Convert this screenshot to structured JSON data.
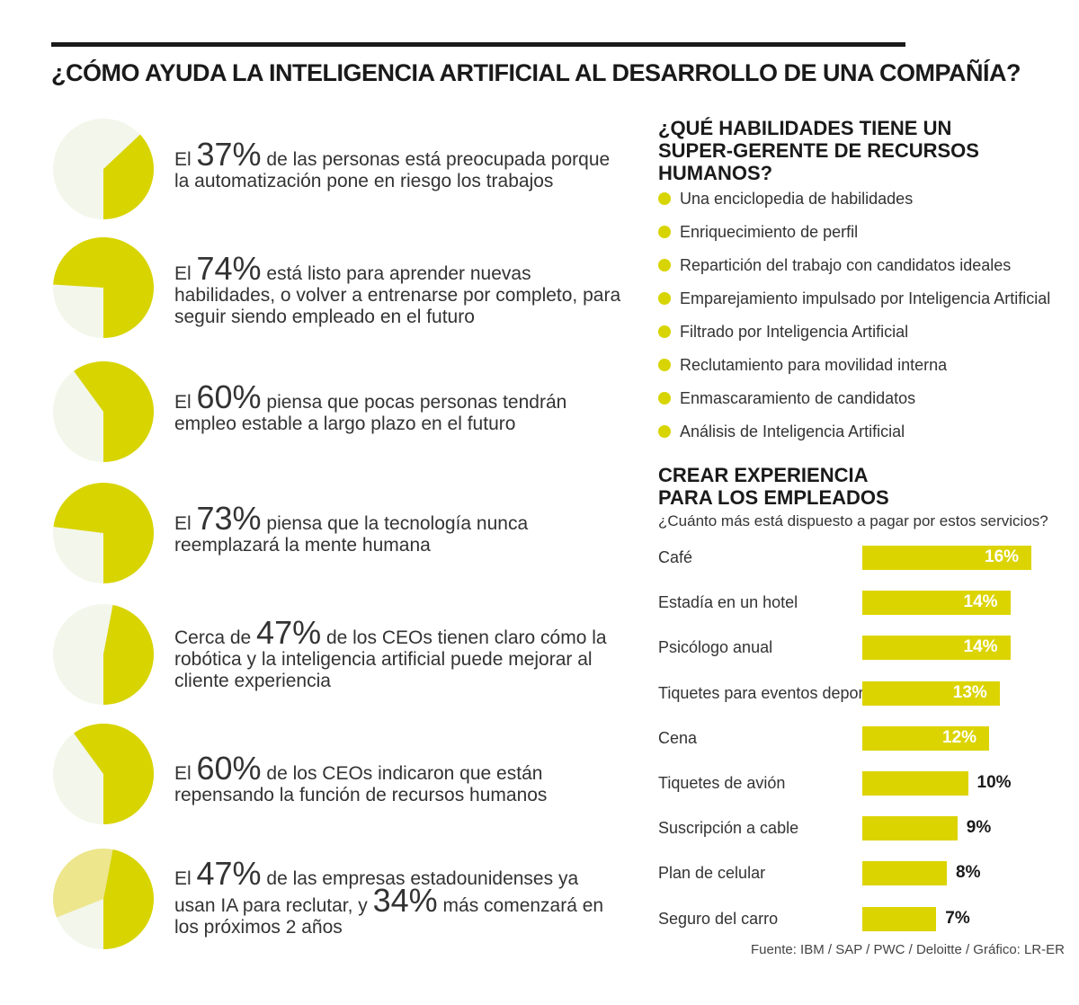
{
  "title": "¿CÓMO AYUDA LA INTELIGENCIA ARTIFICIAL AL DESARROLLO DE UNA COMPAÑÍA?",
  "colors": {
    "accent": "#d8d400",
    "accent_light": "#ede68c",
    "pie_bg": "#f3f6ea",
    "ink": "#1a1a1a"
  },
  "stats": [
    {
      "pre": "El ",
      "value": "37%",
      "post": " de las personas está preocupada porque la automatización pone en riesgo los trabajos",
      "pct": 37
    },
    {
      "pre": "El ",
      "value": "74%",
      "post": " está listo para aprender nuevas habilidades, o volver a entrenarse por completo, para seguir siendo empleado en el futuro",
      "pct": 74
    },
    {
      "pre": "El ",
      "value": "60%",
      "post": " piensa que pocas personas tendrán empleo estable a largo plazo en el futuro",
      "pct": 60
    },
    {
      "pre": "El ",
      "value": "73%",
      "post": " piensa que la tecnología nunca reemplazará la mente humana",
      "pct": 73
    },
    {
      "pre": "Cerca de ",
      "value": "47%",
      "post": " de los CEOs tienen claro cómo la robótica y la inteligencia artificial puede mejorar al cliente experiencia",
      "pct": 47
    },
    {
      "pre": "El ",
      "value": "60%",
      "post": " de los CEOs indicaron que están repensando la función de recursos humanos",
      "pct": 60
    },
    {
      "pre": "El ",
      "value": "47%",
      "post": " de las empresas estadounidenses ya usan IA para reclutar, y ",
      "value2": "34%",
      "post2": " más comenzará en los próximos 2 años",
      "pct": 47,
      "pct2": 34
    }
  ],
  "skills": {
    "title": "¿QUÉ HABILIDADES TIENE UN SUPER-GERENTE DE RECURSOS HUMANOS?",
    "items": [
      "Una enciclopedia de habilidades",
      "Enriquecimiento de perfil",
      "Repartición del trabajo con candidatos ideales",
      "Emparejamiento impulsado por Inteligencia Artificial",
      "Filtrado por Inteligencia Artificial",
      "Reclutamiento para movilidad interna",
      "Enmascaramiento de candidatos",
      "Análisis de Inteligencia Artificial"
    ]
  },
  "experience": {
    "title_line1": "CREAR EXPERIENCIA",
    "title_line2": "PARA LOS EMPLEADOS",
    "subtitle": "¿Cuánto más está dispuesto a pagar por estos servicios?"
  },
  "chart_data": {
    "type": "bar",
    "orientation": "horizontal",
    "categories": [
      "Café",
      "Estadía en un hotel",
      "Psicólogo anual",
      "Tiquetes para eventos deportivos",
      "Cena",
      "Tiquetes de avión",
      "Suscripción a cable",
      "Plan de celular",
      "Seguro del carro"
    ],
    "values": [
      16,
      14,
      14,
      13,
      12,
      10,
      9,
      8,
      7
    ],
    "labels": [
      "16%",
      "14%",
      "14%",
      "13%",
      "12%",
      "10%",
      "9%",
      "8%",
      "7%"
    ],
    "unit": "%"
  },
  "source": "Fuente: IBM / SAP / PWC / Deloitte / Gráfico: LR-ER"
}
